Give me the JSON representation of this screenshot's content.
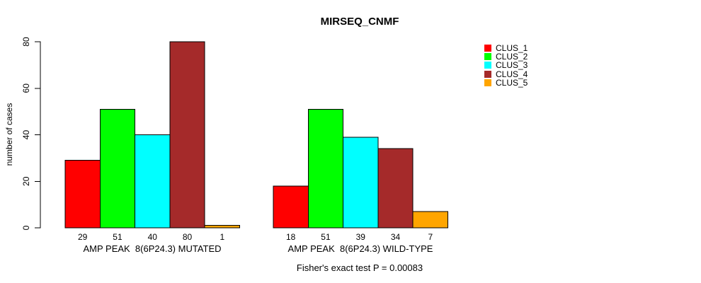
{
  "figure": {
    "background": "#ffffff",
    "axis_color": "#000000",
    "bar_border_color": "#000000"
  },
  "chart_data": {
    "type": "bar",
    "title": "MIRSEQ_CNMF",
    "xlabel": "",
    "ylabel": "number of cases",
    "ylim": [
      0,
      80
    ],
    "yticks": [
      0,
      20,
      40,
      60,
      80
    ],
    "grid": false,
    "legend_position": "right-outside",
    "categories": [
      "AMP PEAK  8(6P24.3) MUTATED",
      "AMP PEAK  8(6P24.3) WILD-TYPE"
    ],
    "series": [
      {
        "name": "CLUS_1",
        "color": "#FF0000",
        "values": [
          29,
          18
        ]
      },
      {
        "name": "CLUS_2",
        "color": "#00FF00",
        "values": [
          51,
          51
        ]
      },
      {
        "name": "CLUS_3",
        "color": "#00FFFF",
        "values": [
          40,
          39
        ]
      },
      {
        "name": "CLUS_4",
        "color": "#A52A2A",
        "values": [
          80,
          34
        ]
      },
      {
        "name": "CLUS_5",
        "color": "#FFA500",
        "values": [
          1,
          7
        ]
      }
    ],
    "bar_value_labels": [
      [
        "29",
        "51",
        "40",
        "80",
        "1"
      ],
      [
        "18",
        "51",
        "39",
        "34",
        "7"
      ]
    ],
    "annotation": "Fisher's exact test P = 0.00083"
  }
}
